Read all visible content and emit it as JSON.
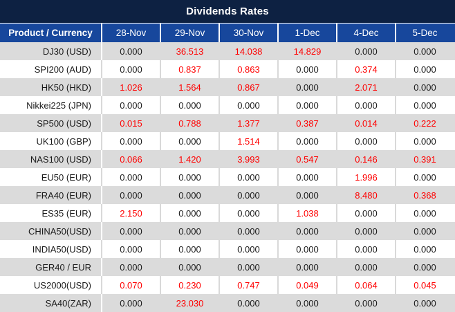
{
  "title": "Dividends Rates",
  "colors": {
    "title_bg": "#0d2142",
    "header_bg": "#17479c",
    "header_text": "#ffffff",
    "row_alt_bg": "#dbdbdb",
    "row_bg": "#ffffff",
    "zero_text": "#1a1a1a",
    "nonzero_text": "#ff0000",
    "separator": "#d9d9d9"
  },
  "table": {
    "product_header": "Product / Currency",
    "date_headers": [
      "28-Nov",
      "29-Nov",
      "30-Nov",
      "1-Dec",
      "4-Dec",
      "5-Dec"
    ],
    "zero_value": "0.000",
    "rows": [
      {
        "product": "DJ30 (USD)",
        "values": [
          "0.000",
          "36.513",
          "14.038",
          "14.829",
          "0.000",
          "0.000"
        ]
      },
      {
        "product": "SPI200 (AUD)",
        "values": [
          "0.000",
          "0.837",
          "0.863",
          "0.000",
          "0.374",
          "0.000"
        ]
      },
      {
        "product": "HK50 (HKD)",
        "values": [
          "1.026",
          "1.564",
          "0.867",
          "0.000",
          "2.071",
          "0.000"
        ]
      },
      {
        "product": "Nikkei225 (JPN)",
        "values": [
          "0.000",
          "0.000",
          "0.000",
          "0.000",
          "0.000",
          "0.000"
        ]
      },
      {
        "product": "SP500 (USD)",
        "values": [
          "0.015",
          "0.788",
          "1.377",
          "0.387",
          "0.014",
          "0.222"
        ]
      },
      {
        "product": "UK100 (GBP)",
        "values": [
          "0.000",
          "0.000",
          "1.514",
          "0.000",
          "0.000",
          "0.000"
        ]
      },
      {
        "product": "NAS100 (USD)",
        "values": [
          "0.066",
          "1.420",
          "3.993",
          "0.547",
          "0.146",
          "0.391"
        ]
      },
      {
        "product": "EU50 (EUR)",
        "values": [
          "0.000",
          "0.000",
          "0.000",
          "0.000",
          "1.996",
          "0.000"
        ]
      },
      {
        "product": "FRA40 (EUR)",
        "values": [
          "0.000",
          "0.000",
          "0.000",
          "0.000",
          "8.480",
          "0.368"
        ]
      },
      {
        "product": "ES35 (EUR)",
        "values": [
          "2.150",
          "0.000",
          "0.000",
          "1.038",
          "0.000",
          "0.000"
        ]
      },
      {
        "product": "CHINA50(USD)",
        "values": [
          "0.000",
          "0.000",
          "0.000",
          "0.000",
          "0.000",
          "0.000"
        ]
      },
      {
        "product": "INDIA50(USD)",
        "values": [
          "0.000",
          "0.000",
          "0.000",
          "0.000",
          "0.000",
          "0.000"
        ]
      },
      {
        "product": "GER40 / EUR",
        "values": [
          "0.000",
          "0.000",
          "0.000",
          "0.000",
          "0.000",
          "0.000"
        ]
      },
      {
        "product": "US2000(USD)",
        "values": [
          "0.070",
          "0.230",
          "0.747",
          "0.049",
          "0.064",
          "0.045"
        ]
      },
      {
        "product": "SA40(ZAR)",
        "values": [
          "0.000",
          "23.030",
          "0.000",
          "0.000",
          "0.000",
          "0.000"
        ]
      }
    ]
  }
}
